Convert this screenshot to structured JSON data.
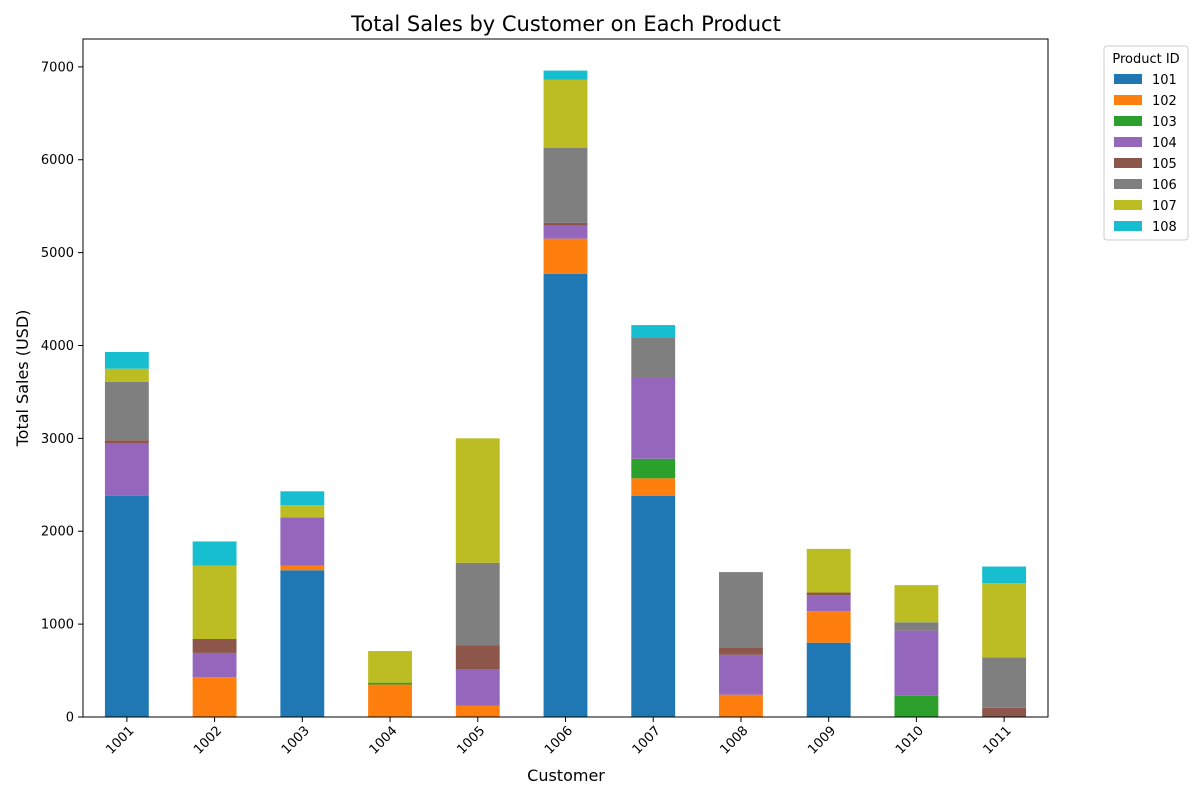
{
  "chart_data": {
    "type": "bar",
    "stacked": true,
    "title": "Total Sales by Customer on Each Product",
    "xlabel": "Customer",
    "ylabel": "Total Sales (USD)",
    "ylim": [
      0,
      7300
    ],
    "yticks": [
      0,
      1000,
      2000,
      3000,
      4000,
      5000,
      6000,
      7000
    ],
    "categories": [
      "1001",
      "1002",
      "1003",
      "1004",
      "1005",
      "1006",
      "1007",
      "1008",
      "1009",
      "1010",
      "1011"
    ],
    "legend_title": "Product ID",
    "legend_position": "outside-top-right",
    "grid": false,
    "series": [
      {
        "name": "101",
        "color": "#1f77b4",
        "values": [
          2380,
          0,
          1580,
          0,
          0,
          4770,
          2380,
          0,
          800,
          0,
          0
        ]
      },
      {
        "name": "102",
        "color": "#ff7f0e",
        "values": [
          0,
          430,
          50,
          350,
          120,
          380,
          190,
          240,
          340,
          0,
          0
        ]
      },
      {
        "name": "103",
        "color": "#2ca02c",
        "values": [
          0,
          0,
          0,
          20,
          0,
          0,
          210,
          0,
          0,
          230,
          0
        ]
      },
      {
        "name": "104",
        "color": "#9467bd",
        "values": [
          570,
          260,
          520,
          0,
          390,
          140,
          870,
          430,
          170,
          700,
          0
        ]
      },
      {
        "name": "105",
        "color": "#8c564b",
        "values": [
          30,
          150,
          0,
          0,
          260,
          30,
          0,
          80,
          30,
          0,
          100
        ]
      },
      {
        "name": "106",
        "color": "#7f7f7f",
        "values": [
          630,
          0,
          0,
          0,
          890,
          810,
          440,
          810,
          0,
          90,
          540
        ]
      },
      {
        "name": "107",
        "color": "#bcbd22",
        "values": [
          140,
          790,
          130,
          340,
          1340,
          730,
          0,
          0,
          470,
          400,
          800
        ]
      },
      {
        "name": "108",
        "color": "#17becf",
        "values": [
          180,
          260,
          150,
          0,
          0,
          100,
          130,
          0,
          0,
          0,
          180
        ]
      }
    ]
  }
}
